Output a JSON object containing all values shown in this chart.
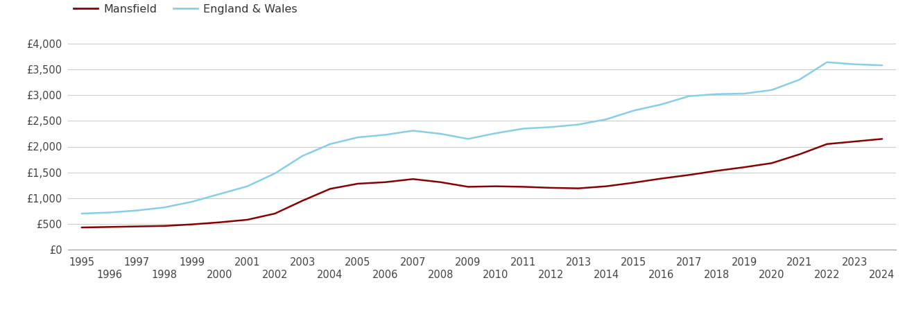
{
  "years": [
    1995,
    1996,
    1997,
    1998,
    1999,
    2000,
    2001,
    2002,
    2003,
    2004,
    2005,
    2006,
    2007,
    2008,
    2009,
    2010,
    2011,
    2012,
    2013,
    2014,
    2015,
    2016,
    2017,
    2018,
    2019,
    2020,
    2021,
    2022,
    2023,
    2024
  ],
  "mansfield": [
    430,
    440,
    450,
    460,
    490,
    530,
    580,
    700,
    950,
    1180,
    1280,
    1310,
    1370,
    1310,
    1220,
    1230,
    1220,
    1200,
    1190,
    1230,
    1300,
    1380,
    1450,
    1530,
    1600,
    1680,
    1850,
    2050,
    2100,
    2150
  ],
  "england_wales": [
    700,
    720,
    760,
    820,
    930,
    1080,
    1230,
    1480,
    1820,
    2050,
    2180,
    2230,
    2310,
    2250,
    2150,
    2260,
    2350,
    2380,
    2430,
    2530,
    2700,
    2820,
    2980,
    3020,
    3030,
    3100,
    3300,
    3640,
    3600,
    3580
  ],
  "mansfield_color": "#8b0000",
  "england_wales_color": "#87CEEB",
  "background_color": "#ffffff",
  "grid_color": "#cccccc",
  "ylim": [
    0,
    4000
  ],
  "yticks": [
    0,
    500,
    1000,
    1500,
    2000,
    2500,
    3000,
    3500,
    4000
  ],
  "ytick_labels": [
    "£0",
    "£500",
    "£1,000",
    "£1,500",
    "£2,000",
    "£2,500",
    "£3,000",
    "£3,500",
    "£4,000"
  ],
  "xlabel_odd": [
    1995,
    1997,
    1999,
    2001,
    2003,
    2005,
    2007,
    2009,
    2011,
    2013,
    2015,
    2017,
    2019,
    2021,
    2023
  ],
  "xlabel_even": [
    1996,
    1998,
    2000,
    2002,
    2004,
    2006,
    2008,
    2010,
    2012,
    2014,
    2016,
    2018,
    2020,
    2022,
    2024
  ],
  "legend_mansfield": "Mansfield",
  "legend_ew": "England & Wales",
  "line_width": 1.8,
  "tick_fontsize": 10.5,
  "legend_fontsize": 11.5,
  "xlim_left": 1994.5,
  "xlim_right": 2024.5
}
